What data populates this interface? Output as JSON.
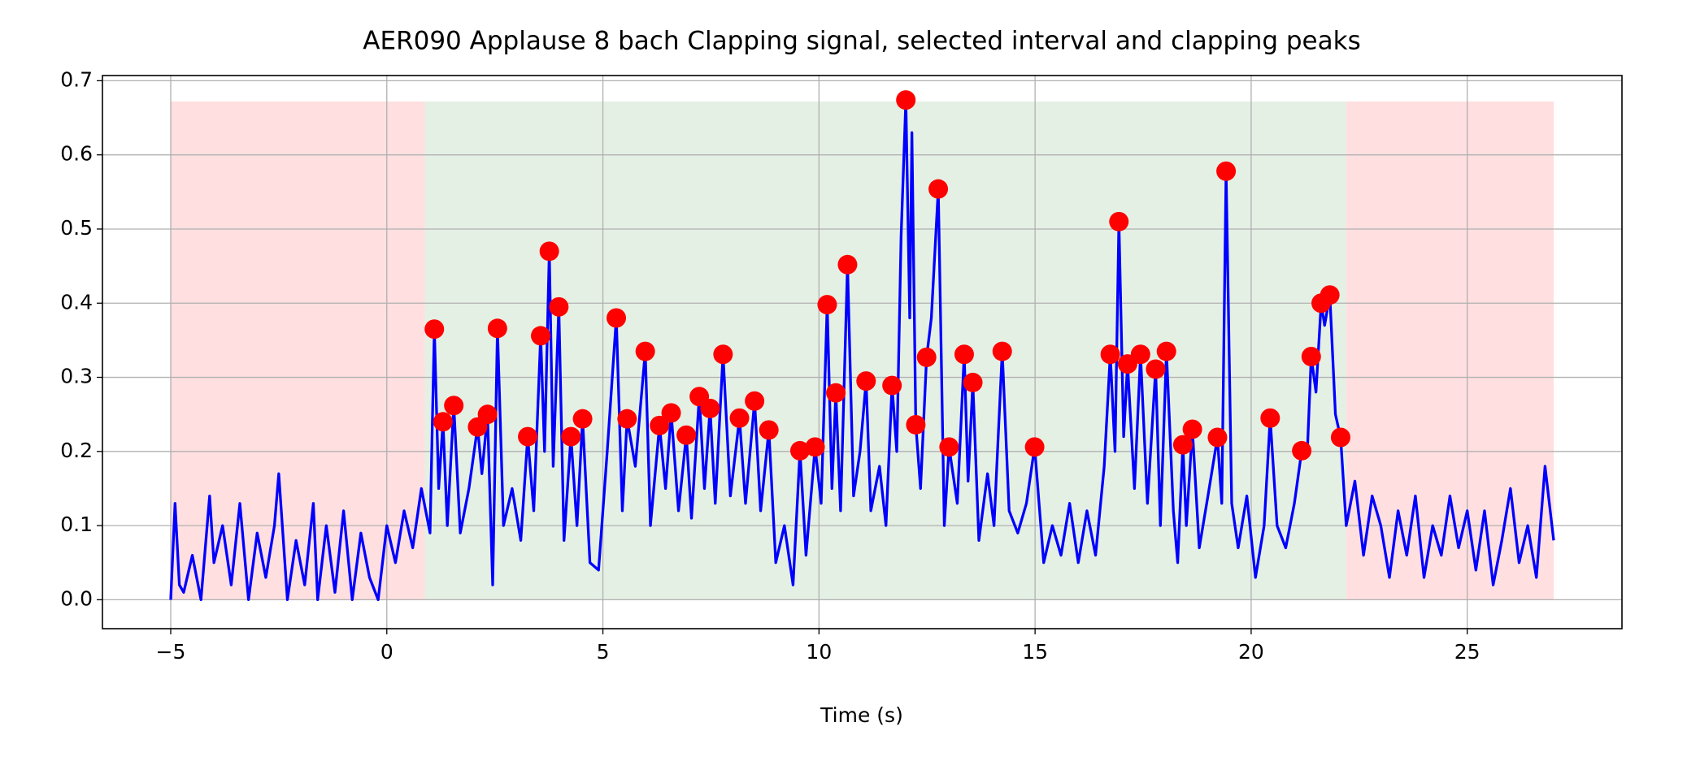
{
  "chart_data": {
    "type": "line",
    "title": "AER090 Applause 8 bach Clapping signal, selected interval and clapping peaks",
    "xlabel": "Time (s)",
    "xlim": [
      -6.58,
      28.58
    ],
    "ylim": [
      -0.039,
      0.707
    ],
    "xticks": [
      {
        "value": -5,
        "label": "−5"
      },
      0,
      5,
      10,
      15,
      20,
      25
    ],
    "yticks": [
      {
        "value": 0,
        "label": "0.0"
      },
      0.1,
      0.2,
      0.3,
      0.4,
      0.5,
      0.6,
      0.7
    ],
    "grid": true,
    "regions": [
      {
        "start": -5,
        "end": 0.88,
        "top": 0.672,
        "color": "#ffdfe0"
      },
      {
        "start": 0.88,
        "end": 22.2,
        "top": 0.672,
        "color": "#e5f0e5"
      },
      {
        "start": 22.2,
        "end": 27.0,
        "top": 0.672,
        "color": "#ffdfe0"
      }
    ],
    "series": [
      {
        "type": "line",
        "color": "#0000ff",
        "x": [
          -5,
          -4.9,
          -4.8,
          -4.7,
          -4.5,
          -4.3,
          -4.1,
          -4.0,
          -3.8,
          -3.6,
          -3.4,
          -3.2,
          -3.0,
          -2.8,
          -2.6,
          -2.5,
          -2.3,
          -2.1,
          -1.9,
          -1.7,
          -1.6,
          -1.4,
          -1.2,
          -1.0,
          -0.8,
          -0.6,
          -0.4,
          -0.2,
          0,
          0.2,
          0.4,
          0.6,
          0.8,
          1.0,
          1.1,
          1.2,
          1.3,
          1.4,
          1.55,
          1.7,
          1.9,
          2.1,
          2.2,
          2.33,
          2.45,
          2.56,
          2.7,
          2.9,
          3.1,
          3.26,
          3.4,
          3.56,
          3.65,
          3.76,
          3.85,
          3.98,
          4.1,
          4.26,
          4.4,
          4.53,
          4.7,
          4.9,
          5.1,
          5.31,
          5.45,
          5.56,
          5.75,
          5.98,
          6.1,
          6.31,
          6.45,
          6.58,
          6.75,
          6.93,
          7.05,
          7.23,
          7.35,
          7.48,
          7.6,
          7.78,
          7.95,
          8.16,
          8.3,
          8.51,
          8.65,
          8.84,
          9.0,
          9.2,
          9.4,
          9.56,
          9.7,
          9.91,
          10.05,
          10.19,
          10.3,
          10.39,
          10.5,
          10.66,
          10.8,
          10.95,
          11.09,
          11.2,
          11.4,
          11.55,
          11.69,
          11.8,
          11.9,
          12.01,
          12.1,
          12.15,
          12.24,
          12.35,
          12.49,
          12.6,
          12.76,
          12.9,
          13.01,
          13.2,
          13.36,
          13.45,
          13.56,
          13.7,
          13.9,
          14.05,
          14.24,
          14.4,
          14.6,
          14.8,
          14.99,
          15.2,
          15.4,
          15.6,
          15.8,
          16.0,
          16.2,
          16.4,
          16.6,
          16.74,
          16.85,
          16.94,
          17.05,
          17.14,
          17.3,
          17.44,
          17.6,
          17.79,
          17.9,
          18.04,
          18.2,
          18.3,
          18.42,
          18.5,
          18.64,
          18.8,
          19.0,
          19.22,
          19.32,
          19.42,
          19.55,
          19.7,
          19.9,
          20.1,
          20.3,
          20.44,
          20.6,
          20.8,
          21.0,
          21.17,
          21.3,
          21.39,
          21.5,
          21.62,
          21.7,
          21.82,
          21.95,
          22.07,
          22.2,
          22.4,
          22.6,
          22.8,
          23.0,
          23.2,
          23.4,
          23.6,
          23.8,
          24.0,
          24.2,
          24.4,
          24.6,
          24.8,
          25.0,
          25.2,
          25.4,
          25.6,
          25.8,
          26.0,
          26.2,
          26.4,
          26.6,
          26.8,
          27.0
        ],
        "values": [
          0,
          0.13,
          0.02,
          0.01,
          0.06,
          0.0,
          0.14,
          0.05,
          0.1,
          0.02,
          0.13,
          0.0,
          0.09,
          0.03,
          0.1,
          0.17,
          0.0,
          0.08,
          0.02,
          0.13,
          0.0,
          0.1,
          0.01,
          0.12,
          0.0,
          0.09,
          0.03,
          0.0,
          0.1,
          0.05,
          0.12,
          0.07,
          0.15,
          0.09,
          0.365,
          0.15,
          0.24,
          0.1,
          0.262,
          0.09,
          0.15,
          0.233,
          0.17,
          0.25,
          0.02,
          0.366,
          0.1,
          0.15,
          0.08,
          0.22,
          0.12,
          0.356,
          0.2,
          0.47,
          0.18,
          0.395,
          0.08,
          0.22,
          0.1,
          0.244,
          0.05,
          0.04,
          0.2,
          0.38,
          0.12,
          0.244,
          0.18,
          0.335,
          0.1,
          0.235,
          0.15,
          0.252,
          0.12,
          0.222,
          0.11,
          0.274,
          0.15,
          0.258,
          0.13,
          0.331,
          0.14,
          0.245,
          0.13,
          0.268,
          0.12,
          0.229,
          0.05,
          0.1,
          0.02,
          0.201,
          0.06,
          0.206,
          0.13,
          0.398,
          0.15,
          0.279,
          0.12,
          0.452,
          0.14,
          0.2,
          0.295,
          0.12,
          0.18,
          0.1,
          0.289,
          0.2,
          0.49,
          0.674,
          0.38,
          0.63,
          0.236,
          0.15,
          0.327,
          0.38,
          0.554,
          0.1,
          0.206,
          0.13,
          0.331,
          0.16,
          0.293,
          0.08,
          0.17,
          0.1,
          0.335,
          0.12,
          0.09,
          0.13,
          0.206,
          0.05,
          0.1,
          0.06,
          0.13,
          0.05,
          0.12,
          0.06,
          0.18,
          0.331,
          0.2,
          0.51,
          0.22,
          0.318,
          0.15,
          0.331,
          0.13,
          0.311,
          0.1,
          0.335,
          0.12,
          0.05,
          0.209,
          0.1,
          0.23,
          0.07,
          0.14,
          0.219,
          0.13,
          0.578,
          0.13,
          0.07,
          0.14,
          0.03,
          0.1,
          0.245,
          0.1,
          0.07,
          0.13,
          0.201,
          0.2,
          0.328,
          0.28,
          0.4,
          0.37,
          0.411,
          0.25,
          0.219,
          0.1,
          0.16,
          0.06,
          0.14,
          0.1,
          0.03,
          0.12,
          0.06,
          0.14,
          0.03,
          0.1,
          0.06,
          0.14,
          0.07,
          0.12,
          0.04,
          0.12,
          0.02,
          0.08,
          0.15,
          0.05,
          0.1,
          0.03,
          0.18,
          0.08
        ]
      },
      {
        "type": "scatter",
        "color": "#ff0000",
        "x": [
          1.1,
          1.3,
          1.55,
          2.1,
          2.33,
          2.56,
          3.26,
          3.56,
          3.76,
          3.98,
          4.26,
          4.53,
          5.31,
          5.56,
          5.98,
          6.31,
          6.58,
          6.93,
          7.23,
          7.48,
          7.78,
          8.16,
          8.51,
          8.84,
          9.56,
          9.91,
          10.19,
          10.39,
          10.66,
          11.09,
          11.69,
          12.01,
          12.24,
          12.49,
          12.76,
          13.01,
          13.36,
          13.56,
          14.24,
          14.99,
          16.74,
          16.94,
          17.14,
          17.44,
          17.79,
          18.04,
          18.42,
          18.64,
          19.22,
          19.42,
          20.44,
          21.17,
          21.39,
          21.62,
          21.82,
          22.07
        ],
        "values": [
          0.365,
          0.24,
          0.262,
          0.233,
          0.25,
          0.366,
          0.22,
          0.356,
          0.47,
          0.395,
          0.22,
          0.244,
          0.38,
          0.244,
          0.335,
          0.235,
          0.252,
          0.222,
          0.274,
          0.258,
          0.331,
          0.245,
          0.268,
          0.229,
          0.201,
          0.206,
          0.398,
          0.279,
          0.452,
          0.295,
          0.289,
          0.674,
          0.236,
          0.327,
          0.554,
          0.206,
          0.331,
          0.293,
          0.335,
          0.206,
          0.331,
          0.51,
          0.318,
          0.331,
          0.311,
          0.335,
          0.209,
          0.23,
          0.219,
          0.578,
          0.245,
          0.201,
          0.328,
          0.4,
          0.411,
          0.219
        ]
      }
    ]
  }
}
